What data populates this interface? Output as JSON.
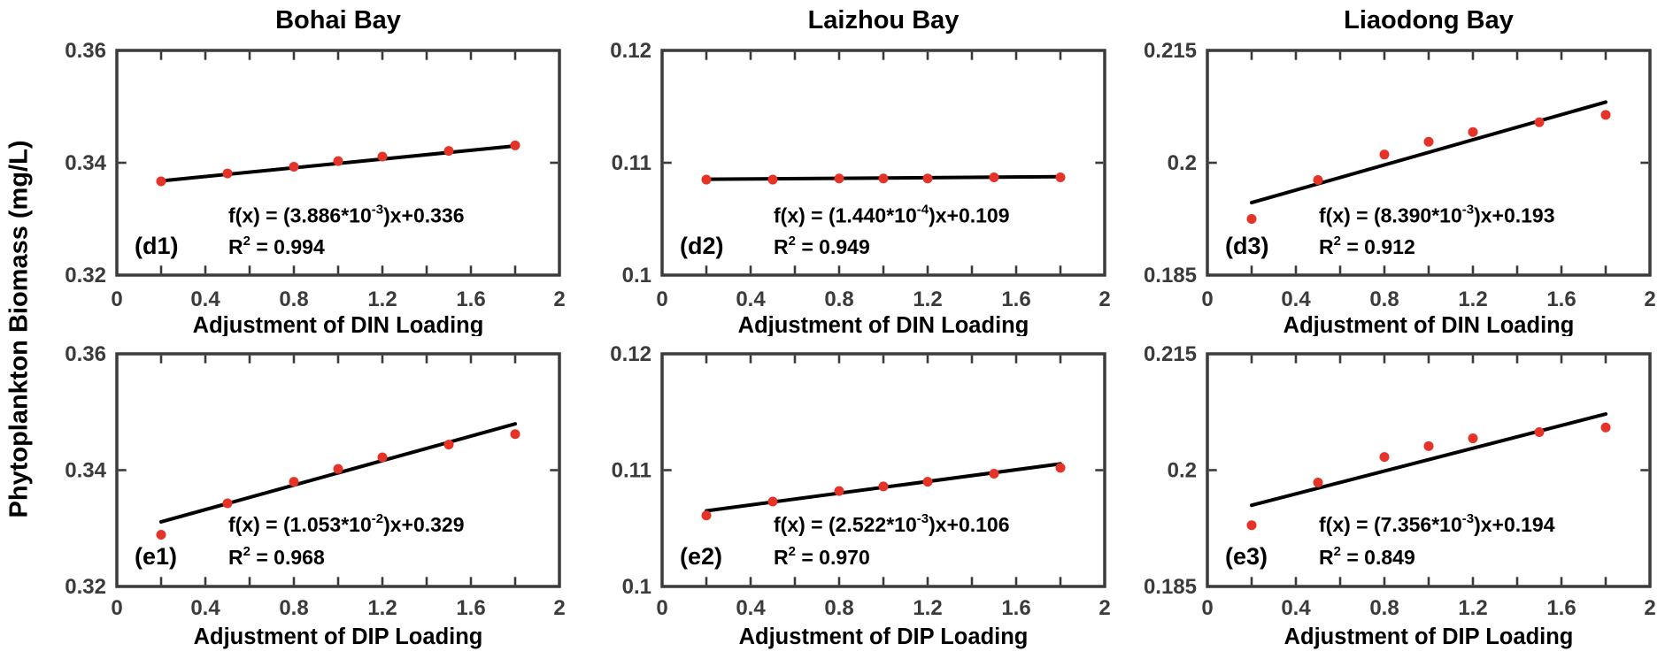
{
  "figure": {
    "ylabel": "Phytoplankton Biomass (mg/L)",
    "columns": [
      "Bohai Bay",
      "Laizhou Bay",
      "Liaodong Bay"
    ],
    "colors": {
      "point": "#e53328",
      "fit_line": "#000000",
      "axis": "#3b3b3b",
      "text": "#000000",
      "background": "#ffffff"
    }
  },
  "chart_data": {
    "type": "scatter",
    "common": {
      "xlim": [
        0,
        2
      ],
      "xtick_positions": [
        0,
        0.4,
        0.8,
        1.2,
        1.6,
        2
      ],
      "xtick_labels": [
        "0",
        "0.4",
        "0.8",
        "1.2",
        "1.6",
        "2"
      ],
      "x_minor_step": 0.2,
      "x_points": [
        0.2,
        0.5,
        0.8,
        1.0,
        1.2,
        1.5,
        1.8
      ],
      "grid": "off",
      "legend": "none"
    },
    "panels": [
      {
        "id": "d1",
        "row": 0,
        "col": 0,
        "title": "Bohai Bay",
        "tag": "(d1)",
        "xlabel": "Adjustment of DIN Loading",
        "ylim": [
          0.32,
          0.36
        ],
        "ytick_values": [
          0.32,
          0.34,
          0.36
        ],
        "ytick_labels": [
          "0.32",
          "0.34",
          "0.36"
        ],
        "y": [
          0.3367,
          0.3381,
          0.3393,
          0.3403,
          0.3411,
          0.3421,
          0.3431
        ],
        "fit": {
          "slope": 0.003886,
          "intercept": 0.336,
          "x_start": 0.2,
          "x_end": 1.8
        },
        "equation": {
          "base": "f(x) = (3.886*10",
          "sup": "-3",
          "rest": ")x+0.336"
        },
        "r2": {
          "base": "R",
          "sup": "2",
          "rest": " = 0.994"
        }
      },
      {
        "id": "d2",
        "row": 0,
        "col": 1,
        "title": "Laizhou Bay",
        "tag": "(d2)",
        "xlabel": "Adjustment of DIN Loading",
        "ylim": [
          0.1,
          0.12
        ],
        "ytick_values": [
          0.1,
          0.11,
          0.12
        ],
        "ytick_labels": [
          "0.1",
          "0.11",
          "0.12"
        ],
        "y": [
          0.1085,
          0.1085,
          0.1086,
          0.1086,
          0.1086,
          0.1087,
          0.1087
        ],
        "fit": {
          "slope": 0.000144,
          "intercept": 0.1085,
          "x_start": 0.2,
          "x_end": 1.8
        },
        "equation": {
          "base": "f(x) = (1.440*10",
          "sup": "-4",
          "rest": ")x+0.109"
        },
        "r2": {
          "base": "R",
          "sup": "2",
          "rest": " = 0.949"
        }
      },
      {
        "id": "d3",
        "row": 0,
        "col": 2,
        "title": "Liaodong Bay",
        "tag": "(d3)",
        "xlabel": "Adjustment of DIN Loading",
        "ylim": [
          0.185,
          0.215
        ],
        "ytick_values": [
          0.185,
          0.2,
          0.215
        ],
        "ytick_labels": [
          "0.185",
          "0.2",
          "0.215"
        ],
        "y": [
          0.1925,
          0.1977,
          0.2011,
          0.2028,
          0.2041,
          0.2054,
          0.2064
        ],
        "fit": {
          "slope": 0.00839,
          "intercept": 0.193,
          "x_start": 0.2,
          "x_end": 1.8
        },
        "equation": {
          "base": "f(x) = (8.390*10",
          "sup": "-3",
          "rest": ")x+0.193"
        },
        "r2": {
          "base": "R",
          "sup": "2",
          "rest": " = 0.912"
        }
      },
      {
        "id": "e1",
        "row": 1,
        "col": 0,
        "title": "",
        "tag": "(e1)",
        "xlabel": "Adjustment of DIP Loading",
        "ylim": [
          0.32,
          0.36
        ],
        "ytick_values": [
          0.32,
          0.34,
          0.36
        ],
        "ytick_labels": [
          "0.32",
          "0.34",
          "0.36"
        ],
        "y": [
          0.3289,
          0.3343,
          0.338,
          0.3402,
          0.3422,
          0.3444,
          0.3462
        ],
        "fit": {
          "slope": 0.01053,
          "intercept": 0.329,
          "x_start": 0.2,
          "x_end": 1.8
        },
        "equation": {
          "base": "f(x) = (1.053*10",
          "sup": "-2",
          "rest": ")x+0.329"
        },
        "r2": {
          "base": "R",
          "sup": "2",
          "rest": " = 0.968"
        }
      },
      {
        "id": "e2",
        "row": 1,
        "col": 1,
        "title": "",
        "tag": "(e2)",
        "xlabel": "Adjustment of DIP Loading",
        "ylim": [
          0.1,
          0.12
        ],
        "ytick_values": [
          0.1,
          0.11,
          0.12
        ],
        "ytick_labels": [
          "0.1",
          "0.11",
          "0.12"
        ],
        "y": [
          0.1061,
          0.1073,
          0.1082,
          0.1086,
          0.109,
          0.1097,
          0.1102
        ],
        "fit": {
          "slope": 0.002522,
          "intercept": 0.106,
          "x_start": 0.2,
          "x_end": 1.8
        },
        "equation": {
          "base": "f(x) = (2.522*10",
          "sup": "-3",
          "rest": ")x+0.106"
        },
        "r2": {
          "base": "R",
          "sup": "2",
          "rest": " = 0.970"
        }
      },
      {
        "id": "e3",
        "row": 1,
        "col": 2,
        "title": "",
        "tag": "(e3)",
        "xlabel": "Adjustment of DIP Loading",
        "ylim": [
          0.185,
          0.215
        ],
        "ytick_values": [
          0.185,
          0.2,
          0.215
        ],
        "ytick_labels": [
          "0.185",
          "0.2",
          "0.215"
        ],
        "y": [
          0.1929,
          0.1984,
          0.2017,
          0.2031,
          0.2041,
          0.2049,
          0.2055
        ],
        "fit": {
          "slope": 0.007356,
          "intercept": 0.194,
          "x_start": 0.2,
          "x_end": 1.8
        },
        "equation": {
          "base": "f(x) = (7.356*10",
          "sup": "-3",
          "rest": ")x+0.194"
        },
        "r2": {
          "base": "R",
          "sup": "2",
          "rest": " = 0.849"
        }
      }
    ]
  }
}
